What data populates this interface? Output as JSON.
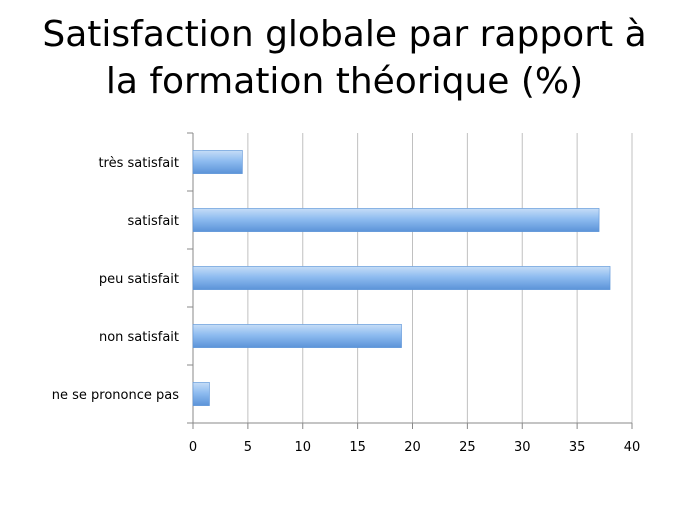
{
  "chart_data": {
    "type": "bar",
    "orientation": "horizontal",
    "title_lines": [
      "Satisfaction globale par rapport à",
      "la formation théorique (%)"
    ],
    "categories": [
      "très satisfait",
      "satisfait",
      "peu satisfait",
      "non satisfait",
      "ne se prononce pas"
    ],
    "values": [
      4.5,
      37,
      38,
      19,
      1.5
    ],
    "xlim": [
      0,
      40
    ],
    "xticks": [
      0,
      5,
      10,
      15,
      20,
      25,
      30,
      35,
      40
    ],
    "grid": true,
    "legend": "none",
    "colors": {
      "bar_light": "#c6ddf7",
      "bar_mid": "#8fbcf0",
      "bar_dark": "#5b93d8",
      "grid": "#c0c0c0",
      "axis": "#888888"
    }
  }
}
